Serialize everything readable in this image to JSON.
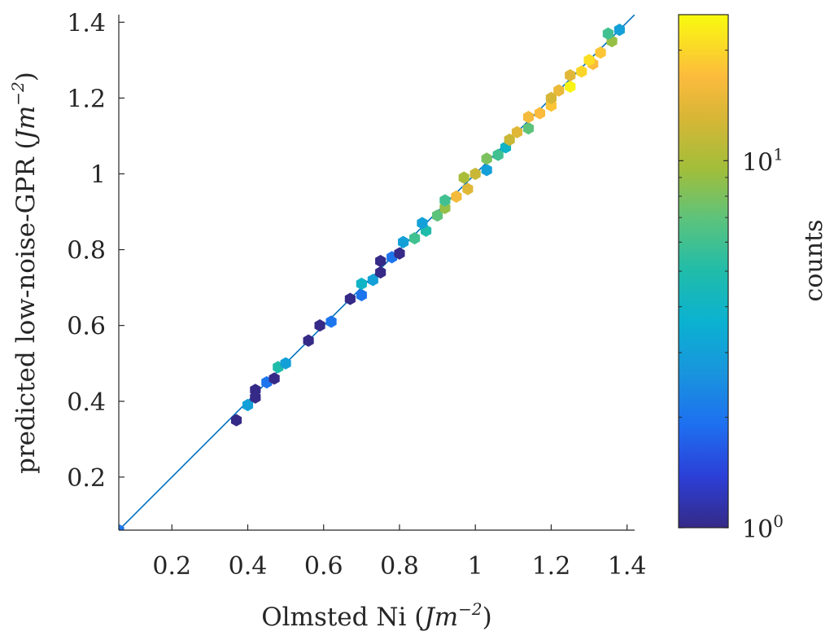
{
  "chart_data": {
    "type": "heatmap",
    "subtype": "hexbin-scatter",
    "title": "",
    "xlabel": {
      "main": "Olmsted Ni (",
      "unit": "Jm",
      "exp": "−2",
      "close": ")"
    },
    "ylabel": {
      "main": "predicted low-noise-GPR (",
      "unit": "Jm",
      "exp": "−2",
      "close": ")"
    },
    "xlim": [
      0.06,
      1.42
    ],
    "ylim": [
      0.06,
      1.42
    ],
    "xticks": [
      0.2,
      0.4,
      0.6,
      0.8,
      1.0,
      1.2,
      1.4
    ],
    "xtick_labels": [
      "0.2",
      "0.4",
      "0.6",
      "0.8",
      "1",
      "1.2",
      "1.4"
    ],
    "yticks": [
      0.2,
      0.4,
      0.6,
      0.8,
      1.0,
      1.2,
      1.4
    ],
    "ytick_labels": [
      "0.2",
      "0.4",
      "0.6",
      "0.8",
      "1",
      "1.2",
      "1.4"
    ],
    "reference_line": {
      "type": "y=x",
      "color": "#0072BD"
    },
    "colorbar": {
      "label": "counts",
      "scale": "log",
      "range": [
        1,
        25
      ],
      "ticks": [
        {
          "value": 1,
          "base": "10",
          "exp": "0"
        },
        {
          "value": 10,
          "base": "10",
          "exp": "1"
        }
      ],
      "colormap": "parula"
    },
    "points": [
      [
        0.06,
        0.06,
        2
      ],
      [
        0.37,
        0.35,
        1
      ],
      [
        0.4,
        0.39,
        3
      ],
      [
        0.42,
        0.41,
        1
      ],
      [
        0.42,
        0.43,
        1
      ],
      [
        0.45,
        0.45,
        2
      ],
      [
        0.47,
        0.46,
        1
      ],
      [
        0.48,
        0.49,
        5
      ],
      [
        0.5,
        0.5,
        3
      ],
      [
        0.56,
        0.56,
        1
      ],
      [
        0.59,
        0.6,
        1
      ],
      [
        0.62,
        0.61,
        2
      ],
      [
        0.67,
        0.67,
        1
      ],
      [
        0.7,
        0.68,
        2
      ],
      [
        0.7,
        0.71,
        4
      ],
      [
        0.73,
        0.72,
        3
      ],
      [
        0.75,
        0.74,
        1
      ],
      [
        0.75,
        0.77,
        1
      ],
      [
        0.78,
        0.78,
        2
      ],
      [
        0.8,
        0.79,
        1
      ],
      [
        0.81,
        0.82,
        3
      ],
      [
        0.84,
        0.83,
        6
      ],
      [
        0.87,
        0.85,
        5
      ],
      [
        0.86,
        0.87,
        3
      ],
      [
        0.9,
        0.89,
        7
      ],
      [
        0.92,
        0.91,
        9
      ],
      [
        0.92,
        0.93,
        6
      ],
      [
        0.95,
        0.94,
        16
      ],
      [
        0.98,
        0.96,
        14
      ],
      [
        0.97,
        0.99,
        10
      ],
      [
        1.0,
        1.0,
        12
      ],
      [
        1.03,
        1.01,
        3
      ],
      [
        1.03,
        1.04,
        8
      ],
      [
        1.06,
        1.05,
        6
      ],
      [
        1.08,
        1.07,
        4
      ],
      [
        1.09,
        1.09,
        12
      ],
      [
        1.11,
        1.11,
        14
      ],
      [
        1.14,
        1.12,
        7
      ],
      [
        1.14,
        1.15,
        16
      ],
      [
        1.17,
        1.16,
        17
      ],
      [
        1.2,
        1.18,
        18
      ],
      [
        1.2,
        1.2,
        13
      ],
      [
        1.22,
        1.22,
        15
      ],
      [
        1.25,
        1.23,
        24
      ],
      [
        1.25,
        1.26,
        14
      ],
      [
        1.28,
        1.27,
        20
      ],
      [
        1.31,
        1.29,
        17
      ],
      [
        1.3,
        1.3,
        21
      ],
      [
        1.33,
        1.32,
        18
      ],
      [
        1.36,
        1.35,
        9
      ],
      [
        1.35,
        1.37,
        6
      ],
      [
        1.38,
        1.38,
        3
      ]
    ]
  }
}
